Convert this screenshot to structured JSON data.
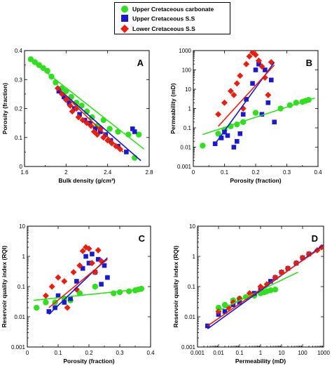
{
  "legend": {
    "entries": [
      {
        "label": "Upper Cretaceous carbonate",
        "marker": "circle",
        "color": "#33dd22"
      },
      {
        "label": "Upper Cretaceous S.S",
        "marker": "square",
        "color": "#1a1acc"
      },
      {
        "label": "Lower Cretaceous S.S",
        "marker": "diamond",
        "color": "#e62010"
      }
    ]
  },
  "colors": {
    "carbonate": "#33dd22",
    "upper_ss": "#1a1acc",
    "lower_ss": "#e62010"
  },
  "chart_data": [
    {
      "panel": "A",
      "type": "scatter",
      "xlabel": "Bulk density (g/cm³)",
      "ylabel": "Porosity (fraction)",
      "xlim": [
        1.6,
        2.8
      ],
      "ylim": [
        0,
        0.4
      ],
      "xscale": "linear",
      "yscale": "linear",
      "xticks": [
        1.6,
        2,
        2.4,
        2.8
      ],
      "xtick_labels": [
        "1.6",
        "2",
        "2.4",
        "2.8"
      ],
      "yticks": [
        0,
        0.1,
        0.2,
        0.3,
        0.4
      ],
      "ytick_labels": [
        "0",
        "0.1",
        "0.2",
        "0.3",
        "0.4"
      ],
      "series": [
        {
          "key": "carbonate",
          "x": [
            1.66,
            1.7,
            1.74,
            1.78,
            1.82,
            1.86,
            1.9,
            1.96,
            2.0,
            2.05,
            2.1,
            2.15,
            2.2,
            2.25,
            2.3,
            2.36,
            2.42,
            2.5,
            2.6,
            2.66,
            2.7
          ],
          "y": [
            0.37,
            0.36,
            0.35,
            0.34,
            0.33,
            0.31,
            0.29,
            0.27,
            0.26,
            0.24,
            0.22,
            0.21,
            0.19,
            0.17,
            0.14,
            0.16,
            0.13,
            0.12,
            0.11,
            0.03,
            0.11
          ]
        },
        {
          "key": "upper_ss",
          "x": [
            1.93,
            1.98,
            2.03,
            2.08,
            2.13,
            2.18,
            2.23,
            2.28,
            2.33,
            2.38,
            2.43,
            2.5,
            2.58,
            2.64,
            2.66
          ],
          "y": [
            0.26,
            0.24,
            0.22,
            0.2,
            0.18,
            0.16,
            0.15,
            0.13,
            0.12,
            0.11,
            0.09,
            0.07,
            0.05,
            0.13,
            0.12
          ]
        },
        {
          "key": "lower_ss",
          "x": [
            1.92,
            1.96,
            2.0,
            2.04,
            2.06,
            2.1,
            2.12,
            2.16,
            2.2,
            2.24,
            2.27,
            2.3,
            2.33,
            2.36,
            2.4,
            2.44,
            2.48,
            2.52
          ],
          "y": [
            0.27,
            0.25,
            0.23,
            0.21,
            0.19,
            0.2,
            0.17,
            0.16,
            0.15,
            0.14,
            0.12,
            0.11,
            0.13,
            0.1,
            0.09,
            0.08,
            0.07,
            0.06
          ]
        }
      ],
      "fit_lines": [
        {
          "key": "carbonate",
          "x": [
            1.65,
            2.75
          ],
          "y": [
            0.37,
            0.06
          ]
        },
        {
          "key": "upper_ss",
          "x": [
            1.92,
            2.72
          ],
          "y": [
            0.27,
            0.02
          ]
        },
        {
          "key": "lower_ss",
          "x": [
            1.92,
            2.55
          ],
          "y": [
            0.27,
            0.05
          ]
        }
      ]
    },
    {
      "panel": "B",
      "type": "scatter",
      "xlabel": "Porosity (fraction)",
      "ylabel": "Permeability (mD)",
      "xlim": [
        0,
        0.4
      ],
      "ylim": [
        0.001,
        1000
      ],
      "xscale": "linear",
      "yscale": "log",
      "xticks": [
        0,
        0.1,
        0.2,
        0.3,
        0.4
      ],
      "xtick_labels": [
        "0",
        "0.1",
        "0.2",
        "0.3",
        "0.4"
      ],
      "yticks": [
        0.001,
        0.01,
        0.1,
        1,
        10,
        100,
        1000
      ],
      "ytick_labels": [
        "0.001",
        "0.01",
        "0.1",
        "1",
        "10",
        "100",
        "1000"
      ],
      "series": [
        {
          "key": "carbonate",
          "x": [
            0.03,
            0.08,
            0.1,
            0.12,
            0.14,
            0.16,
            0.2,
            0.28,
            0.31,
            0.33,
            0.35,
            0.36,
            0.37
          ],
          "y": [
            0.012,
            0.05,
            0.08,
            0.12,
            0.15,
            0.2,
            0.6,
            1.0,
            1.5,
            2.0,
            2.2,
            2.5,
            2.8
          ]
        },
        {
          "key": "upper_ss",
          "x": [
            0.07,
            0.09,
            0.1,
            0.11,
            0.13,
            0.14,
            0.15,
            0.16,
            0.17,
            0.19,
            0.2,
            0.21,
            0.22,
            0.23,
            0.24,
            0.25,
            0.26
          ],
          "y": [
            0.015,
            0.03,
            0.06,
            0.04,
            0.01,
            0.02,
            0.05,
            0.5,
            3.0,
            20,
            100,
            200,
            0.5,
            100,
            2.0,
            30,
            0.2
          ]
        },
        {
          "key": "lower_ss",
          "x": [
            0.08,
            0.1,
            0.12,
            0.13,
            0.14,
            0.15,
            0.16,
            0.17,
            0.18,
            0.19,
            0.2,
            0.21,
            0.22,
            0.23,
            0.24,
            0.25
          ],
          "y": [
            0.5,
            2.0,
            8.0,
            5.0,
            20,
            50,
            1.0,
            200,
            500,
            800,
            600,
            300,
            150,
            40,
            5.0,
            250
          ]
        }
      ],
      "fit_lines": [
        {
          "key": "carbonate",
          "x": [
            0.03,
            0.39
          ],
          "y": [
            0.045,
            3.5
          ]
        },
        {
          "key": "upper_ss",
          "x": [
            0.07,
            0.26
          ],
          "y": [
            0.015,
            250
          ]
        },
        {
          "key": "lower_ss",
          "x": [
            0.08,
            0.26
          ],
          "y": [
            0.12,
            180
          ]
        }
      ]
    },
    {
      "panel": "C",
      "type": "scatter",
      "xlabel": "Porosity (fraction)",
      "ylabel": "Reservoir quality index (RQI)",
      "xlim": [
        0,
        0.4
      ],
      "ylim": [
        0.001,
        10
      ],
      "xscale": "linear",
      "yscale": "log",
      "xticks": [
        0,
        0.1,
        0.2,
        0.3,
        0.4
      ],
      "xtick_labels": [
        "0",
        "0.1",
        "0.2",
        "0.3",
        "0.4"
      ],
      "yticks": [
        0.001,
        0.01,
        0.1,
        1,
        10
      ],
      "ytick_labels": [
        "0.001",
        "0.01",
        "0.1",
        "1",
        "10"
      ],
      "series": [
        {
          "key": "carbonate",
          "x": [
            0.03,
            0.06,
            0.09,
            0.12,
            0.14,
            0.17,
            0.22,
            0.28,
            0.3,
            0.33,
            0.35,
            0.36,
            0.37
          ],
          "y": [
            0.02,
            0.03,
            0.03,
            0.04,
            0.035,
            0.06,
            0.1,
            0.06,
            0.065,
            0.07,
            0.075,
            0.08,
            0.085
          ]
        },
        {
          "key": "upper_ss",
          "x": [
            0.07,
            0.09,
            0.1,
            0.12,
            0.14,
            0.16,
            0.18,
            0.19,
            0.2,
            0.21,
            0.22,
            0.23,
            0.24,
            0.25,
            0.26
          ],
          "y": [
            0.015,
            0.02,
            0.05,
            0.03,
            0.04,
            0.15,
            0.4,
            1.0,
            0.6,
            1.2,
            0.3,
            0.8,
            0.12,
            0.5,
            0.2
          ]
        },
        {
          "key": "lower_ss",
          "x": [
            0.06,
            0.08,
            0.1,
            0.12,
            0.13,
            0.15,
            0.16,
            0.17,
            0.18,
            0.19,
            0.2,
            0.21,
            0.22,
            0.23,
            0.24
          ],
          "y": [
            0.05,
            0.1,
            0.2,
            0.15,
            0.02,
            0.3,
            0.08,
            0.5,
            1.5,
            2.0,
            1.8,
            0.6,
            0.3,
            1.6,
            0.7
          ]
        }
      ],
      "fit_lines": [
        {
          "key": "carbonate",
          "x": [
            0.02,
            0.38
          ],
          "y": [
            0.035,
            0.085
          ]
        },
        {
          "key": "upper_ss",
          "x": [
            0.07,
            0.26
          ],
          "y": [
            0.012,
            0.9
          ]
        },
        {
          "key": "lower_ss",
          "x": [
            0.07,
            0.26
          ],
          "y": [
            0.02,
            0.8
          ]
        }
      ]
    },
    {
      "panel": "D",
      "type": "scatter",
      "xlabel": "Permeability (mD)",
      "ylabel": "Reservoir quality index (RQI)",
      "xlim": [
        0.001,
        1000
      ],
      "ylim": [
        0.001,
        10
      ],
      "xscale": "log",
      "yscale": "log",
      "xticks": [
        0.001,
        0.01,
        0.1,
        1,
        10,
        100,
        1000
      ],
      "xtick_labels": [
        "0.001",
        "0.01",
        "0.1",
        "1",
        "10",
        "100",
        "1000"
      ],
      "yticks": [
        0.001,
        0.01,
        0.1,
        1,
        10
      ],
      "ytick_labels": [
        "0.001",
        "0.01",
        "0.1",
        "1",
        "10"
      ],
      "series": [
        {
          "key": "carbonate",
          "x": [
            0.01,
            0.02,
            0.05,
            0.1,
            0.2,
            0.5,
            1,
            1.5,
            2,
            3,
            5
          ],
          "y": [
            0.02,
            0.025,
            0.035,
            0.04,
            0.045,
            0.05,
            0.06,
            0.065,
            0.07,
            0.075,
            0.08
          ]
        },
        {
          "key": "upper_ss",
          "x": [
            0.003,
            0.01,
            0.02,
            0.05,
            0.1,
            0.5,
            1,
            3,
            5,
            10,
            20,
            50,
            100,
            200
          ],
          "y": [
            0.005,
            0.012,
            0.015,
            0.025,
            0.03,
            0.06,
            0.09,
            0.15,
            0.2,
            0.3,
            0.4,
            0.6,
            0.9,
            1.2
          ]
        },
        {
          "key": "lower_ss",
          "x": [
            0.01,
            0.03,
            0.05,
            0.1,
            0.3,
            1,
            2,
            5,
            10,
            20,
            50,
            100,
            200,
            500,
            800
          ],
          "y": [
            0.015,
            0.02,
            0.03,
            0.04,
            0.06,
            0.1,
            0.12,
            0.2,
            0.3,
            0.4,
            0.6,
            0.9,
            1.2,
            1.6,
            2.0
          ]
        }
      ],
      "fit_lines": [
        {
          "key": "carbonate",
          "x": [
            0.01,
            60
          ],
          "y": [
            0.016,
            0.3
          ]
        },
        {
          "key": "upper_ss",
          "x": [
            0.003,
            1000
          ],
          "y": [
            0.004,
            2.4
          ]
        },
        {
          "key": "lower_ss",
          "x": [
            0.003,
            1000
          ],
          "y": [
            0.005,
            2.2
          ]
        }
      ]
    }
  ]
}
